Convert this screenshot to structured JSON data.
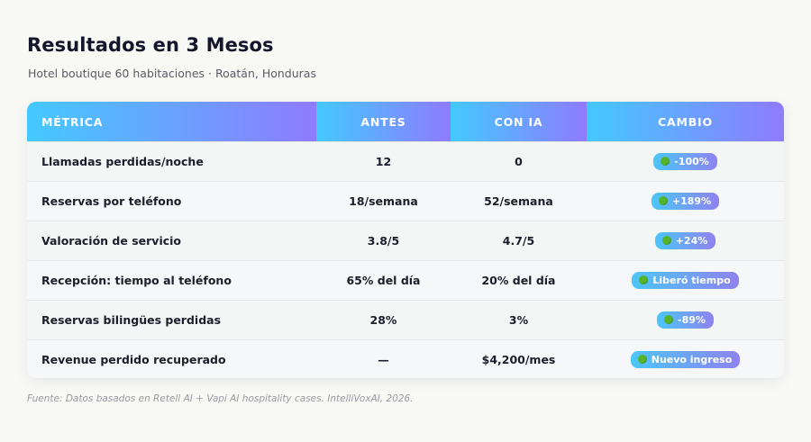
{
  "header": {
    "title": "Resultados en 3 Mesos",
    "subtitle": "Hotel boutique 60 habitaciones · Roatán, Honduras"
  },
  "table": {
    "columns": [
      "MÉTRICA",
      "ANTES",
      "CON IA",
      "CAMBIO"
    ],
    "rows": [
      {
        "metric": "Llamadas perdidas/noche",
        "before": "12",
        "after": "0",
        "change": "-100%",
        "change_icon": "green-circle-icon"
      },
      {
        "metric": "Reservas por teléfono",
        "before": "18/semana",
        "after": "52/semana",
        "change": "+189%",
        "change_icon": "green-circle-icon"
      },
      {
        "metric": "Valoración de servicio",
        "before": "3.8/5",
        "after": "4.7/5",
        "change": "+24%",
        "change_icon": "green-circle-icon"
      },
      {
        "metric": "Recepción: tiempo al teléfono",
        "before": "65% del día",
        "after": "20% del día",
        "change": "Liberó tiempo",
        "change_icon": "green-circle-icon"
      },
      {
        "metric": "Reservas bilingües perdidas",
        "before": "28%",
        "after": "3%",
        "change": "-89%",
        "change_icon": "green-circle-icon"
      },
      {
        "metric": "Revenue perdido recuperado",
        "before": "—",
        "after": "$4,200/mes",
        "change": "Nuevo ingreso",
        "change_icon": "green-circle-icon"
      }
    ]
  },
  "footer": {
    "source": "Fuente: Datos basados en Retell AI + Vapi AI hospitality cases. IntelliVoxAI, 2026."
  },
  "colors": {
    "header_gradient_start": "#44c9ff",
    "header_gradient_end": "#8f7bff",
    "badge_dot": "#54b52d"
  }
}
